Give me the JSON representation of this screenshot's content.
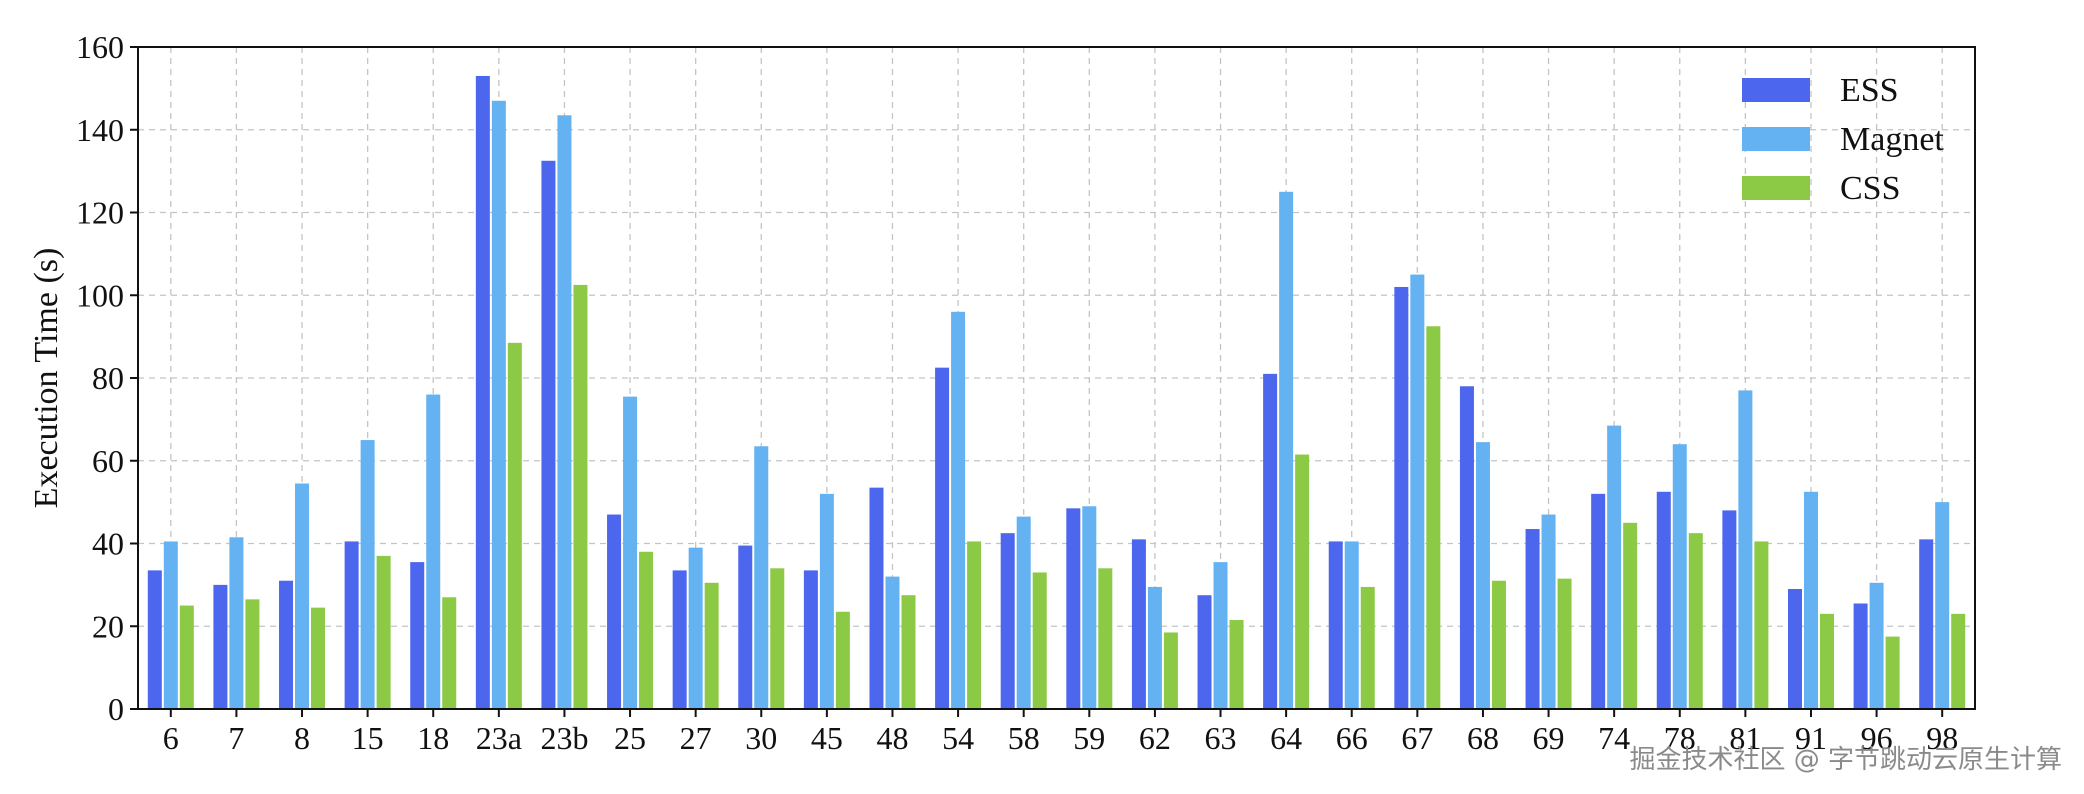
{
  "chart_data": {
    "type": "bar",
    "xlabel": "",
    "ylabel": "Execution Time (s)",
    "ylim": [
      0,
      160
    ],
    "yticks": [
      0,
      20,
      40,
      60,
      80,
      100,
      120,
      140,
      160
    ],
    "grid": true,
    "legend_position": "top-right",
    "categories": [
      "6",
      "7",
      "8",
      "15",
      "18",
      "23a",
      "23b",
      "25",
      "27",
      "30",
      "45",
      "48",
      "54",
      "58",
      "59",
      "62",
      "63",
      "64",
      "66",
      "67",
      "68",
      "69",
      "74",
      "78",
      "81",
      "91",
      "96",
      "98"
    ],
    "series": [
      {
        "name": "ESS",
        "color": "#4C66EE",
        "values": [
          33.5,
          30,
          31,
          40.5,
          35.5,
          153,
          132.5,
          47,
          33.5,
          39.5,
          33.5,
          53.5,
          82.5,
          42.5,
          48.5,
          41,
          27.5,
          81,
          40.5,
          102,
          78,
          43.5,
          52,
          52.5,
          48,
          29,
          25.5,
          41
        ]
      },
      {
        "name": "Magnet",
        "color": "#64B2F2",
        "values": [
          40.5,
          41.5,
          54.5,
          65,
          76,
          147,
          143.5,
          75.5,
          39,
          63.5,
          52,
          32,
          96,
          46.5,
          49,
          29.5,
          35.5,
          125,
          40.5,
          105,
          64.5,
          47,
          68.5,
          64,
          77,
          52.5,
          30.5,
          50
        ]
      },
      {
        "name": "CSS",
        "color": "#8CC944",
        "values": [
          25,
          26.5,
          24.5,
          37,
          27,
          88.5,
          102.5,
          38,
          30.5,
          34,
          23.5,
          27.5,
          40.5,
          33,
          34,
          18.5,
          21.5,
          61.5,
          29.5,
          92.5,
          31,
          31.5,
          45,
          42.5,
          40.5,
          23,
          17.5,
          23
        ]
      }
    ]
  },
  "watermark": "掘金技术社区 @ 字节跳动云原生计算",
  "colors": {
    "grid": "#c4c4c4",
    "axis": "#111111"
  }
}
